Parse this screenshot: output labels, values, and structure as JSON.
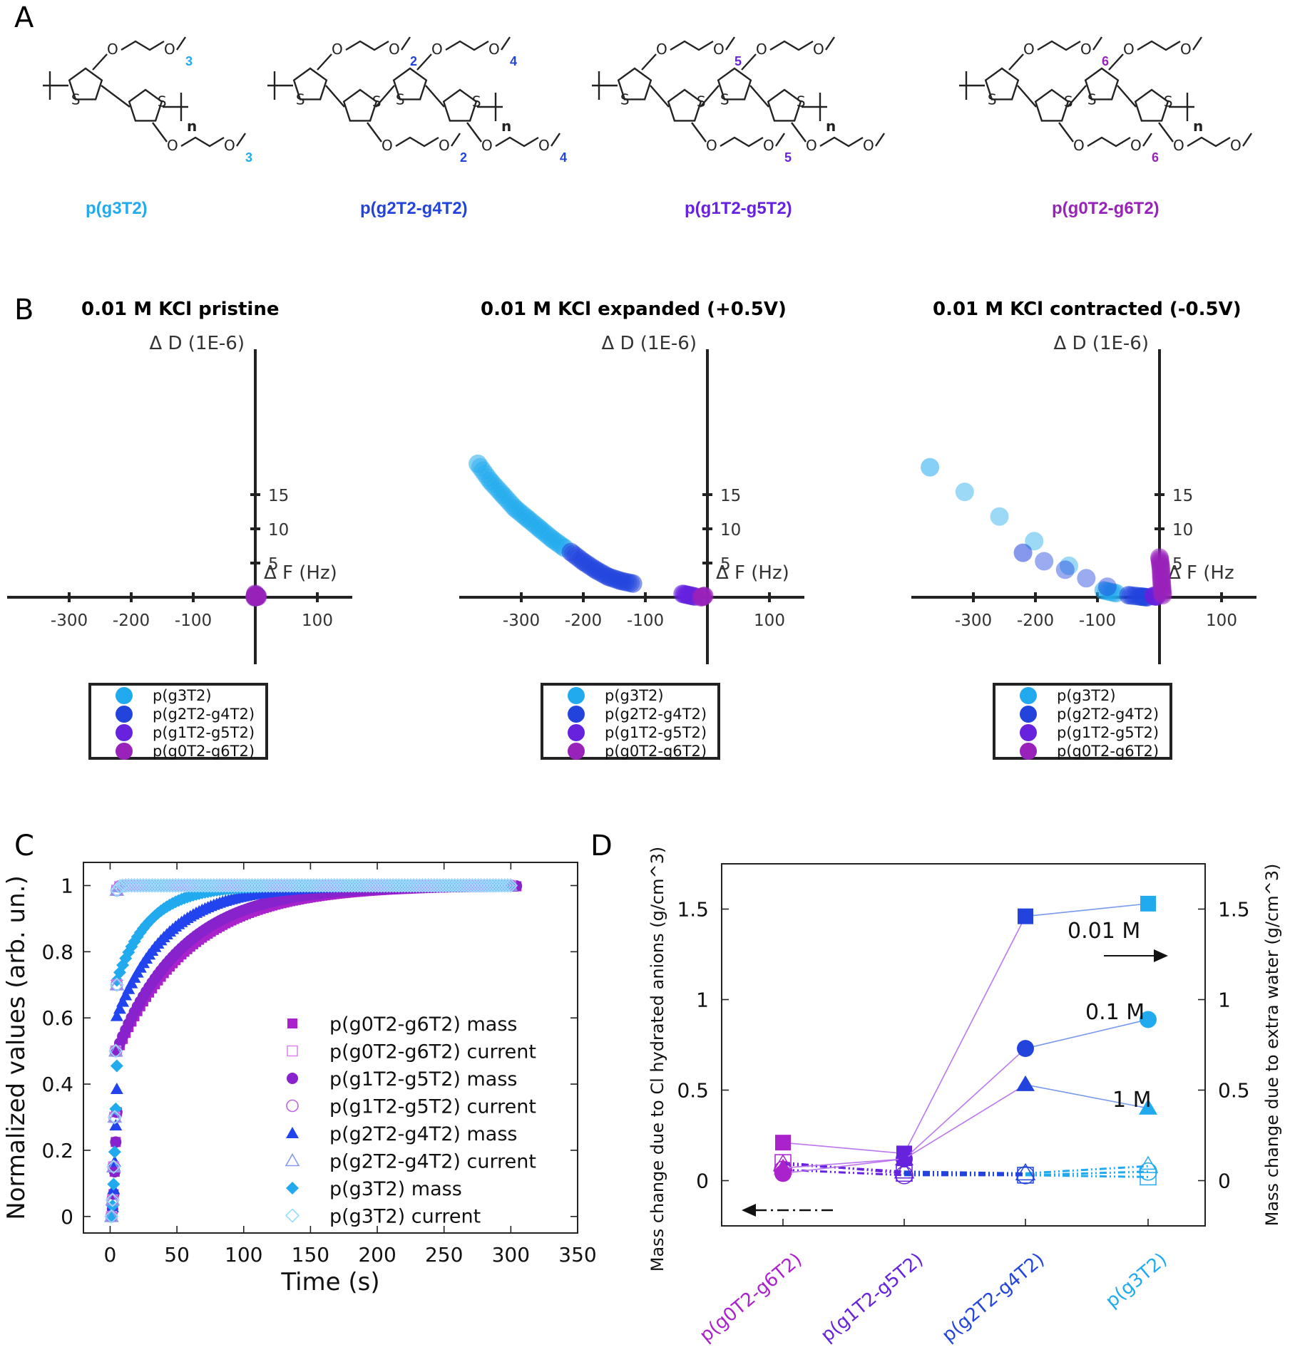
{
  "panels": {
    "A": "A",
    "B": "B",
    "C": "C",
    "D": "D"
  },
  "colors": {
    "g3T2": "#22aaee",
    "g2T2": "#2244dd",
    "g1T2": "#6622dd",
    "g0T2": "#9922bb"
  },
  "structures": [
    {
      "name": "p(g3T2)",
      "subs": [
        "3",
        "3"
      ],
      "color": "#22aaee"
    },
    {
      "name": "p(g2T2-g4T2)",
      "subs": [
        "2",
        "2",
        "4",
        "4"
      ],
      "color": "#2244dd"
    },
    {
      "name": "p(g1T2-g5T2)",
      "subs": [
        "5",
        "5"
      ],
      "color": "#6622dd"
    },
    {
      "name": "p(g0T2-g6T2)",
      "subs": [
        "6",
        "6"
      ],
      "color": "#9922bb"
    }
  ],
  "structure_text": {
    "S": "S",
    "O": "O",
    "n": "n"
  },
  "chart_data": [
    {
      "type": "scatter",
      "title": "0.01 M KCl pristine",
      "xlabel": "Δ F (Hz)",
      "ylabel": "Δ D (1E-6)",
      "xticks": [
        "-300",
        "-200",
        "-100",
        "100"
      ],
      "yticks": [
        "5",
        "10",
        "15"
      ],
      "series": [
        {
          "name": "p(g3T2)",
          "points": [
            [
              0,
              0
            ],
            [
              2,
              0.3
            ]
          ]
        },
        {
          "name": "p(g2T2-g4T2)",
          "points": [
            [
              1,
              0.1
            ]
          ]
        },
        {
          "name": "p(g1T2-g5T2)",
          "points": [
            [
              3,
              0.2
            ]
          ]
        },
        {
          "name": "p(g0T2-g6T2)",
          "points": [
            [
              0,
              0.5
            ],
            [
              -1,
              0
            ],
            [
              4,
              0.1
            ]
          ]
        }
      ]
    },
    {
      "type": "scatter",
      "title": "0.01 M KCl expanded (+0.5V)",
      "xlabel": "Δ F (Hz)",
      "ylabel": "Δ D (1E-6)",
      "xticks": [
        "-300",
        "-200",
        "-100",
        "100"
      ],
      "yticks": [
        "5",
        "10",
        "15"
      ],
      "series": [
        {
          "name": "p(g3T2)",
          "points": [
            [
              -370,
              19.5
            ],
            [
              -350,
              17
            ],
            [
              -330,
              15
            ],
            [
              -310,
              13
            ],
            [
              -290,
              11.5
            ],
            [
              -270,
              10
            ],
            [
              -250,
              8.5
            ],
            [
              -230,
              7.2
            ]
          ]
        },
        {
          "name": "p(g2T2-g4T2)",
          "points": [
            [
              -220,
              6.6
            ],
            [
              -200,
              5.2
            ],
            [
              -180,
              4
            ],
            [
              -160,
              3
            ],
            [
              -140,
              2.4
            ],
            [
              -120,
              2
            ]
          ]
        },
        {
          "name": "p(g1T2-g5T2)",
          "points": [
            [
              -40,
              0.5
            ],
            [
              -30,
              0.3
            ],
            [
              -20,
              0.1
            ]
          ]
        },
        {
          "name": "p(g0T2-g6T2)",
          "points": [
            [
              -10,
              0
            ],
            [
              -5,
              0.2
            ]
          ]
        }
      ]
    },
    {
      "type": "scatter",
      "title": "0.01 M KCl contracted (-0.5V)",
      "xlabel": "Δ F (Hz",
      "ylabel": "Δ D (1E-6)",
      "xticks": [
        "-300",
        "-200",
        "-100",
        "100"
      ],
      "yticks": [
        "5",
        "10",
        "15"
      ],
      "series": [
        {
          "name": "p(g3T2)",
          "points": [
            [
              -370,
              19
            ],
            [
              -90,
              1
            ],
            [
              -70,
              0.6
            ]
          ]
        },
        {
          "name": "p(g2T2-g4T2)",
          "points": [
            [
              -220,
              6.5
            ],
            [
              -50,
              0.3
            ],
            [
              -30,
              0.1
            ],
            [
              -20,
              0
            ]
          ]
        },
        {
          "name": "p(g1T2-g5T2)",
          "points": [
            [
              -10,
              0.2
            ],
            [
              -5,
              0.1
            ]
          ]
        },
        {
          "name": "p(g0T2-g6T2)",
          "points": [
            [
              0,
              5.8
            ],
            [
              2,
              4.5
            ],
            [
              3,
              3
            ],
            [
              4,
              1.5
            ],
            [
              5,
              0.3
            ]
          ]
        }
      ]
    },
    {
      "type": "scatter",
      "xlabel": "Time (s)",
      "ylabel": "Normalized values (arb. un.)",
      "xlim": [
        -20,
        350
      ],
      "ylim": [
        -0.05,
        1.07
      ],
      "xticks": [
        "0",
        "50",
        "100",
        "150",
        "200",
        "250",
        "300",
        "350"
      ],
      "yticks": [
        "0",
        "0.2",
        "0.4",
        "0.6",
        "0.8",
        "1"
      ],
      "series": [
        {
          "name": "p(g0T2-g6T2) mass",
          "marker": "square-filled",
          "color": "#aa22cc",
          "tau": 55,
          "a0": 0.45
        },
        {
          "name": "p(g0T2-g6T2) current",
          "marker": "square-open",
          "color": "#dd88ee",
          "tau": 1.5,
          "a0": 0.6
        },
        {
          "name": "p(g1T2-g5T2) mass",
          "marker": "circle-filled",
          "color": "#8822cc",
          "tau": 50,
          "a0": 0.45
        },
        {
          "name": "p(g1T2-g5T2) current",
          "marker": "circle-open",
          "color": "#bb66dd",
          "tau": 1.5,
          "a0": 0.6
        },
        {
          "name": "p(g2T2-g4T2) mass",
          "marker": "triangle-filled",
          "color": "#2244ee",
          "tau": 38,
          "a0": 0.55
        },
        {
          "name": "p(g2T2-g4T2) current",
          "marker": "triangle-open",
          "color": "#8899ee",
          "tau": 1.5,
          "a0": 0.6
        },
        {
          "name": "p(g3T2) mass",
          "marker": "diamond-filled",
          "color": "#22aaee",
          "tau": 25,
          "a0": 0.65
        },
        {
          "name": "p(g3T2) current",
          "marker": "diamond-open",
          "color": "#99ddff",
          "tau": 1.5,
          "a0": 0.6
        }
      ]
    },
    {
      "type": "line",
      "ylabel_left": "Mass change due to Cl hydrated anions (g/cm^3)",
      "ylabel_right": "Mass change due to extra water (g/cm^3)",
      "ylim": [
        -0.25,
        1.75
      ],
      "yticks": [
        "0",
        "0.5",
        "1",
        "1.5"
      ],
      "categories": [
        "p(g0T2-g6T2)",
        "p(g1T2-g5T2)",
        "p(g2T2-g4T2)",
        "p(g3T2)"
      ],
      "category_colors": [
        "#aa22cc",
        "#6622dd",
        "#2244dd",
        "#22aaee"
      ],
      "series": [
        {
          "name": "0.01 M",
          "marker": "square",
          "values": [
            0.21,
            0.15,
            1.46,
            1.53
          ]
        },
        {
          "name": "0.1 M",
          "marker": "circle",
          "values": [
            0.04,
            0.12,
            0.73,
            0.89
          ]
        },
        {
          "name": "1 M",
          "marker": "triangle",
          "values": [
            0.07,
            0.12,
            0.53,
            0.4
          ]
        }
      ],
      "open_series": [
        {
          "marker": "square",
          "values": [
            0.1,
            0.04,
            0.03,
            0.02
          ]
        },
        {
          "marker": "circle",
          "values": [
            0.06,
            0.03,
            0.03,
            0.05
          ]
        },
        {
          "marker": "triangle",
          "values": [
            0.09,
            0.05,
            0.04,
            0.08
          ]
        }
      ]
    }
  ]
}
